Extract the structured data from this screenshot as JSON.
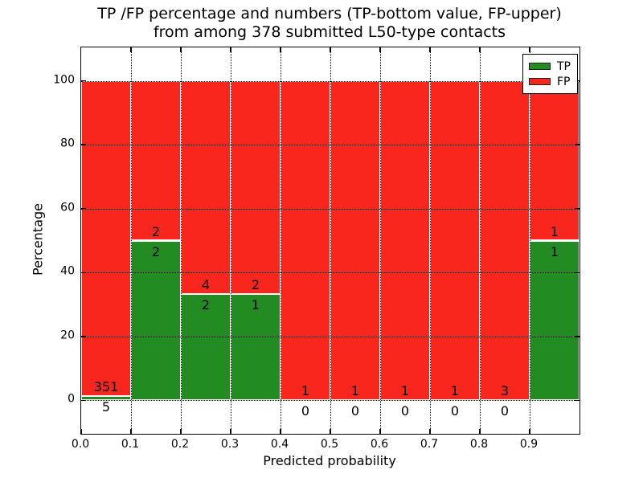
{
  "figure": {
    "title_line1": "TP /FP percentage and numbers (TP-bottom value, FP-upper)",
    "title_line2": "from among 378 submitted L50-type contacts"
  },
  "chart_data": {
    "type": "bar",
    "subtype": "stacked-percentage",
    "title": "TP /FP percentage and numbers (TP-bottom value, FP-upper) from among 378 submitted L50-type contacts",
    "xlabel": "Predicted probability",
    "ylabel": "Percentage",
    "total_contacts": 378,
    "xlim": [
      0.0,
      1.0
    ],
    "ylim": [
      -10.5,
      110.5
    ],
    "bin_width": 0.1,
    "bin_starts": [
      0.0,
      0.1,
      0.2,
      0.3,
      0.4,
      0.5,
      0.6,
      0.7,
      0.8,
      0.9
    ],
    "x_tick_labels": [
      "0.0",
      "0.1",
      "0.2",
      "0.3",
      "0.4",
      "0.5",
      "0.6",
      "0.7",
      "0.8",
      "0.9"
    ],
    "y_ticks": [
      0,
      20,
      40,
      60,
      80,
      100
    ],
    "y_tick_labels": [
      "0",
      "20",
      "40",
      "60",
      "80",
      "100"
    ],
    "grid": "dotted, both axes, drawn above bars",
    "series": [
      {
        "name": "TP",
        "color": "#228b22",
        "values": [
          5,
          2,
          2,
          1,
          0,
          0,
          0,
          0,
          0,
          1
        ]
      },
      {
        "name": "FP",
        "color": "#f8261d",
        "values": [
          351,
          2,
          4,
          2,
          1,
          1,
          1,
          1,
          3,
          1
        ]
      }
    ],
    "tp_percent": [
      1.4,
      50.0,
      33.3,
      33.3,
      0.0,
      0.0,
      0.0,
      0.0,
      0.0,
      50.0
    ],
    "label_note": "TP count printed below green/red boundary, FP count printed above it",
    "legend": {
      "position": "upper right",
      "items": [
        {
          "label": "TP",
          "color": "#228b22"
        },
        {
          "label": "FP",
          "color": "#f8261d"
        }
      ]
    }
  }
}
